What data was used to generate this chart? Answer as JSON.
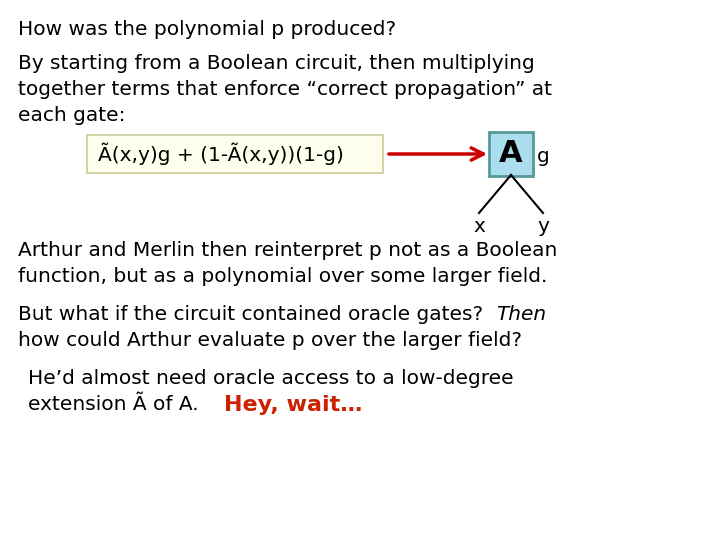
{
  "bg_color": "#ffffff",
  "title_text": "How was the polynomial p produced?",
  "para1_line1": "By starting from a Boolean circuit, then multiplying",
  "para1_line2": "together terms that enforce “correct propagation” at",
  "para1_line3": "each gate:",
  "formula_text": "Ã(x,y)g + (1-Ã(x,y))(1-g)",
  "formula_bg": "#ffffee",
  "formula_border": "#cccc99",
  "gate_label": "A",
  "gate_bg": "#aaddee",
  "gate_border": "#559999",
  "gate_g_label": "g",
  "gate_x_label": "x",
  "gate_y_label": "y",
  "arrow_color": "#cc0000",
  "para2_line1": "Arthur and Merlin then reinterpret p not as a Boolean",
  "para2_line2": "function, but as a polynomial over some larger field.",
  "para3_line1_normal": "But what if the circuit contained oracle gates?  ",
  "para3_line1_italic": "Then",
  "para3_line2": "how could Arthur evaluate p over the larger field?",
  "para4_line1": "He’d almost need oracle access to a low-degree",
  "para4_line2_normal": "extension Ã of A.    ",
  "para4_line2_colored": "Hey, wait…",
  "colored_text_color": "#cc2200",
  "font_size": 14.5
}
